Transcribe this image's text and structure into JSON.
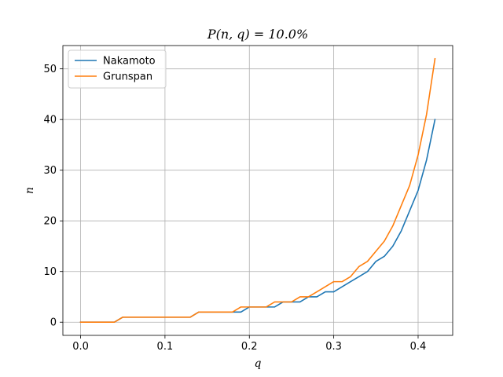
{
  "chart_data": {
    "type": "line",
    "title": "P(n, q) = 10.0%",
    "xlabel": "q",
    "ylabel": "n",
    "xlim": [
      -0.021,
      0.441
    ],
    "ylim": [
      -2.6,
      54.6
    ],
    "xticks": [
      0.0,
      0.1,
      0.2,
      0.3,
      0.4
    ],
    "xtick_labels": [
      "0.0",
      "0.1",
      "0.2",
      "0.3",
      "0.4"
    ],
    "yticks": [
      0,
      10,
      20,
      30,
      40,
      50
    ],
    "ytick_labels": [
      "0",
      "10",
      "20",
      "30",
      "40",
      "50"
    ],
    "grid": true,
    "legend_position": "top-left",
    "x": [
      0.0,
      0.01,
      0.02,
      0.03,
      0.04,
      0.05,
      0.06,
      0.07,
      0.08,
      0.09,
      0.1,
      0.11,
      0.12,
      0.13,
      0.14,
      0.15,
      0.16,
      0.17,
      0.18,
      0.19,
      0.2,
      0.21,
      0.22,
      0.23,
      0.24,
      0.25,
      0.26,
      0.27,
      0.28,
      0.29,
      0.3,
      0.31,
      0.32,
      0.33,
      0.34,
      0.35,
      0.36,
      0.37,
      0.38,
      0.39,
      0.4,
      0.41,
      0.42
    ],
    "series": [
      {
        "name": "Nakamoto",
        "color": "#1f77b4",
        "values": [
          0,
          0,
          0,
          0,
          0,
          1,
          1,
          1,
          1,
          1,
          1,
          1,
          1,
          1,
          2,
          2,
          2,
          2,
          2,
          2,
          3,
          3,
          3,
          3,
          4,
          4,
          4,
          5,
          5,
          6,
          6,
          7,
          8,
          9,
          10,
          12,
          13,
          15,
          18,
          22,
          26,
          32,
          40
        ]
      },
      {
        "name": "Grunspan",
        "color": "#ff7f0e",
        "values": [
          0,
          0,
          0,
          0,
          0,
          1,
          1,
          1,
          1,
          1,
          1,
          1,
          1,
          1,
          2,
          2,
          2,
          2,
          2,
          3,
          3,
          3,
          3,
          4,
          4,
          4,
          5,
          5,
          6,
          7,
          8,
          8,
          9,
          11,
          12,
          14,
          16,
          19,
          23,
          27,
          33,
          41,
          52
        ]
      }
    ]
  }
}
